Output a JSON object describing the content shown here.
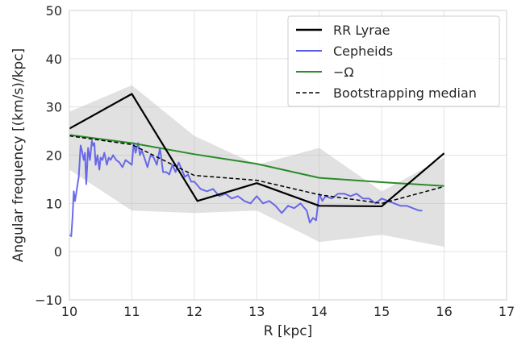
{
  "chart_data": {
    "type": "line",
    "xlabel": "R [kpc]",
    "ylabel": "Angular frequency [(km/s)/kpc]",
    "xlim": [
      10,
      17
    ],
    "ylim": [
      -10,
      50
    ],
    "xticks": [
      10,
      11,
      12,
      13,
      14,
      15,
      16,
      17
    ],
    "yticks": [
      -10,
      0,
      10,
      20,
      30,
      40,
      50
    ],
    "grid": true,
    "legend_position": "top-right",
    "band": {
      "x": [
        10,
        11,
        12,
        13,
        14,
        15,
        16
      ],
      "upper": [
        29,
        34.5,
        24,
        18,
        21.5,
        12.5,
        19.5
      ],
      "lower": [
        17,
        8.5,
        8,
        8.5,
        2,
        3.5,
        1
      ]
    },
    "series": [
      {
        "name": "RR Lyrae",
        "color": "#000000",
        "style": "solid",
        "x": [
          10,
          11,
          12.05,
          13,
          14,
          15,
          16
        ],
        "y": [
          25.5,
          32.7,
          10.5,
          14.2,
          9.5,
          9.4,
          20.4
        ]
      },
      {
        "name": "Cepheids",
        "color": "#5b5bea",
        "style": "solid",
        "x": [
          10.0,
          10.03,
          10.05,
          10.07,
          10.09,
          10.12,
          10.15,
          10.18,
          10.2,
          10.23,
          10.25,
          10.27,
          10.3,
          10.33,
          10.36,
          10.38,
          10.4,
          10.42,
          10.45,
          10.48,
          10.5,
          10.53,
          10.56,
          10.6,
          10.63,
          10.66,
          10.7,
          10.75,
          10.8,
          10.85,
          10.9,
          10.95,
          11.0,
          11.03,
          11.06,
          11.1,
          11.13,
          11.16,
          11.2,
          11.25,
          11.3,
          11.35,
          11.4,
          11.45,
          11.5,
          11.55,
          11.6,
          11.65,
          11.7,
          11.75,
          11.8,
          11.85,
          11.9,
          11.95,
          12.0,
          12.1,
          12.2,
          12.3,
          12.4,
          12.5,
          12.6,
          12.7,
          12.8,
          12.9,
          13.0,
          13.1,
          13.2,
          13.3,
          13.4,
          13.5,
          13.6,
          13.7,
          13.8,
          13.85,
          13.9,
          13.95,
          14.0,
          14.05,
          14.1,
          14.2,
          14.3,
          14.4,
          14.5,
          14.6,
          14.7,
          14.8,
          14.9,
          15.0,
          15.1,
          15.2,
          15.3,
          15.4,
          15.5,
          15.6,
          15.65
        ],
        "y": [
          3.5,
          3.2,
          7.0,
          12.5,
          10.5,
          13.0,
          15.5,
          22.0,
          21.0,
          19.0,
          20.5,
          14.0,
          21.5,
          19.0,
          23.0,
          22.0,
          22.5,
          18.0,
          20.0,
          17.0,
          19.5,
          19.0,
          20.5,
          18.0,
          19.5,
          19.0,
          20.0,
          19.0,
          18.5,
          17.5,
          19.0,
          18.5,
          18.0,
          22.5,
          20.5,
          22.5,
          20.0,
          21.0,
          19.5,
          17.5,
          20.0,
          19.5,
          18.0,
          21.5,
          16.5,
          16.5,
          16.0,
          18.0,
          16.5,
          18.5,
          17.0,
          15.5,
          16.0,
          14.5,
          14.5,
          13.0,
          12.5,
          13.0,
          11.5,
          12.0,
          11.0,
          11.5,
          10.5,
          10.0,
          11.5,
          10.0,
          10.5,
          9.5,
          8.0,
          9.5,
          9.0,
          10.0,
          8.5,
          6.0,
          7.0,
          6.5,
          12.0,
          10.5,
          11.5,
          11.0,
          12.0,
          12.0,
          11.5,
          12.0,
          11.0,
          11.0,
          10.0,
          11.0,
          10.5,
          10.0,
          9.5,
          9.5,
          9.0,
          8.5,
          8.5
        ]
      },
      {
        "name": "−Ω",
        "color": "#2a8c2a",
        "style": "solid",
        "x": [
          10,
          11,
          12,
          13,
          14,
          15,
          16
        ],
        "y": [
          24.2,
          22.5,
          20.2,
          18.2,
          15.3,
          14.4,
          13.6
        ]
      },
      {
        "name": "Bootstrapping median",
        "color": "#000000",
        "style": "dashed",
        "x": [
          10,
          11,
          12,
          13,
          14,
          15,
          16
        ],
        "y": [
          24.0,
          22.2,
          15.8,
          14.8,
          11.8,
          10.0,
          13.5
        ]
      }
    ]
  }
}
